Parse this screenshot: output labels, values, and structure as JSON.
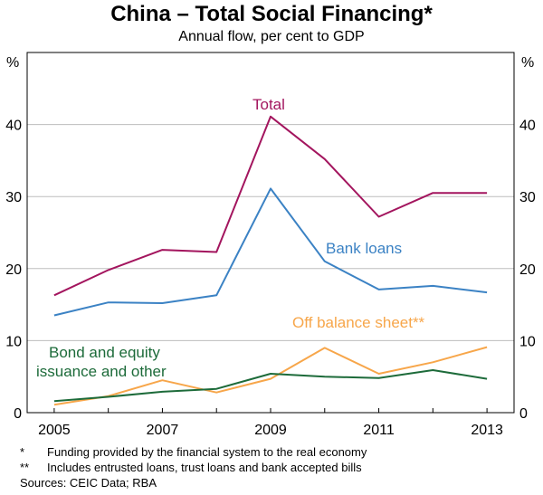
{
  "chart_data": {
    "type": "line",
    "title": "China – Total Social Financing*",
    "subtitle": "Annual flow, per cent to GDP",
    "y_unit_left": "%",
    "y_unit_right": "%",
    "ylim": [
      0,
      50
    ],
    "yticks": [
      0,
      10,
      20,
      30,
      40
    ],
    "xlim": [
      2004.5,
      2013.5
    ],
    "xticks": [
      2005,
      2007,
      2009,
      2011,
      2013
    ],
    "x": [
      2005,
      2006,
      2007,
      2008,
      2009,
      2010,
      2011,
      2012,
      2013
    ],
    "grid": true,
    "series": [
      {
        "name": "Total",
        "color": "#a3155e",
        "values": [
          16.3,
          19.8,
          22.6,
          22.3,
          41.1,
          35.2,
          27.2,
          30.5,
          30.5
        ]
      },
      {
        "name": "Bank loans",
        "color": "#3b82c4",
        "values": [
          13.5,
          15.3,
          15.2,
          16.3,
          31.1,
          21.0,
          17.1,
          17.6,
          16.7
        ]
      },
      {
        "name": "Off balance sheet**",
        "color": "#f7a64a",
        "values": [
          1.1,
          2.3,
          4.5,
          2.8,
          4.7,
          9.0,
          5.4,
          7.0,
          9.1
        ]
      },
      {
        "name": "Bond and equity issuance and other",
        "label_lines": [
          "Bond and equity",
          "issuance and other"
        ],
        "color": "#1d6b3a",
        "values": [
          1.6,
          2.2,
          2.9,
          3.3,
          5.4,
          5.0,
          4.8,
          5.9,
          4.7
        ]
      }
    ]
  },
  "notes": [
    {
      "mark": "*",
      "text": "Funding provided by the financial system to the real economy"
    },
    {
      "mark": "**",
      "text": "Includes entrusted loans, trust loans and bank accepted bills"
    }
  ],
  "sources": "Sources: CEIC Data; RBA"
}
